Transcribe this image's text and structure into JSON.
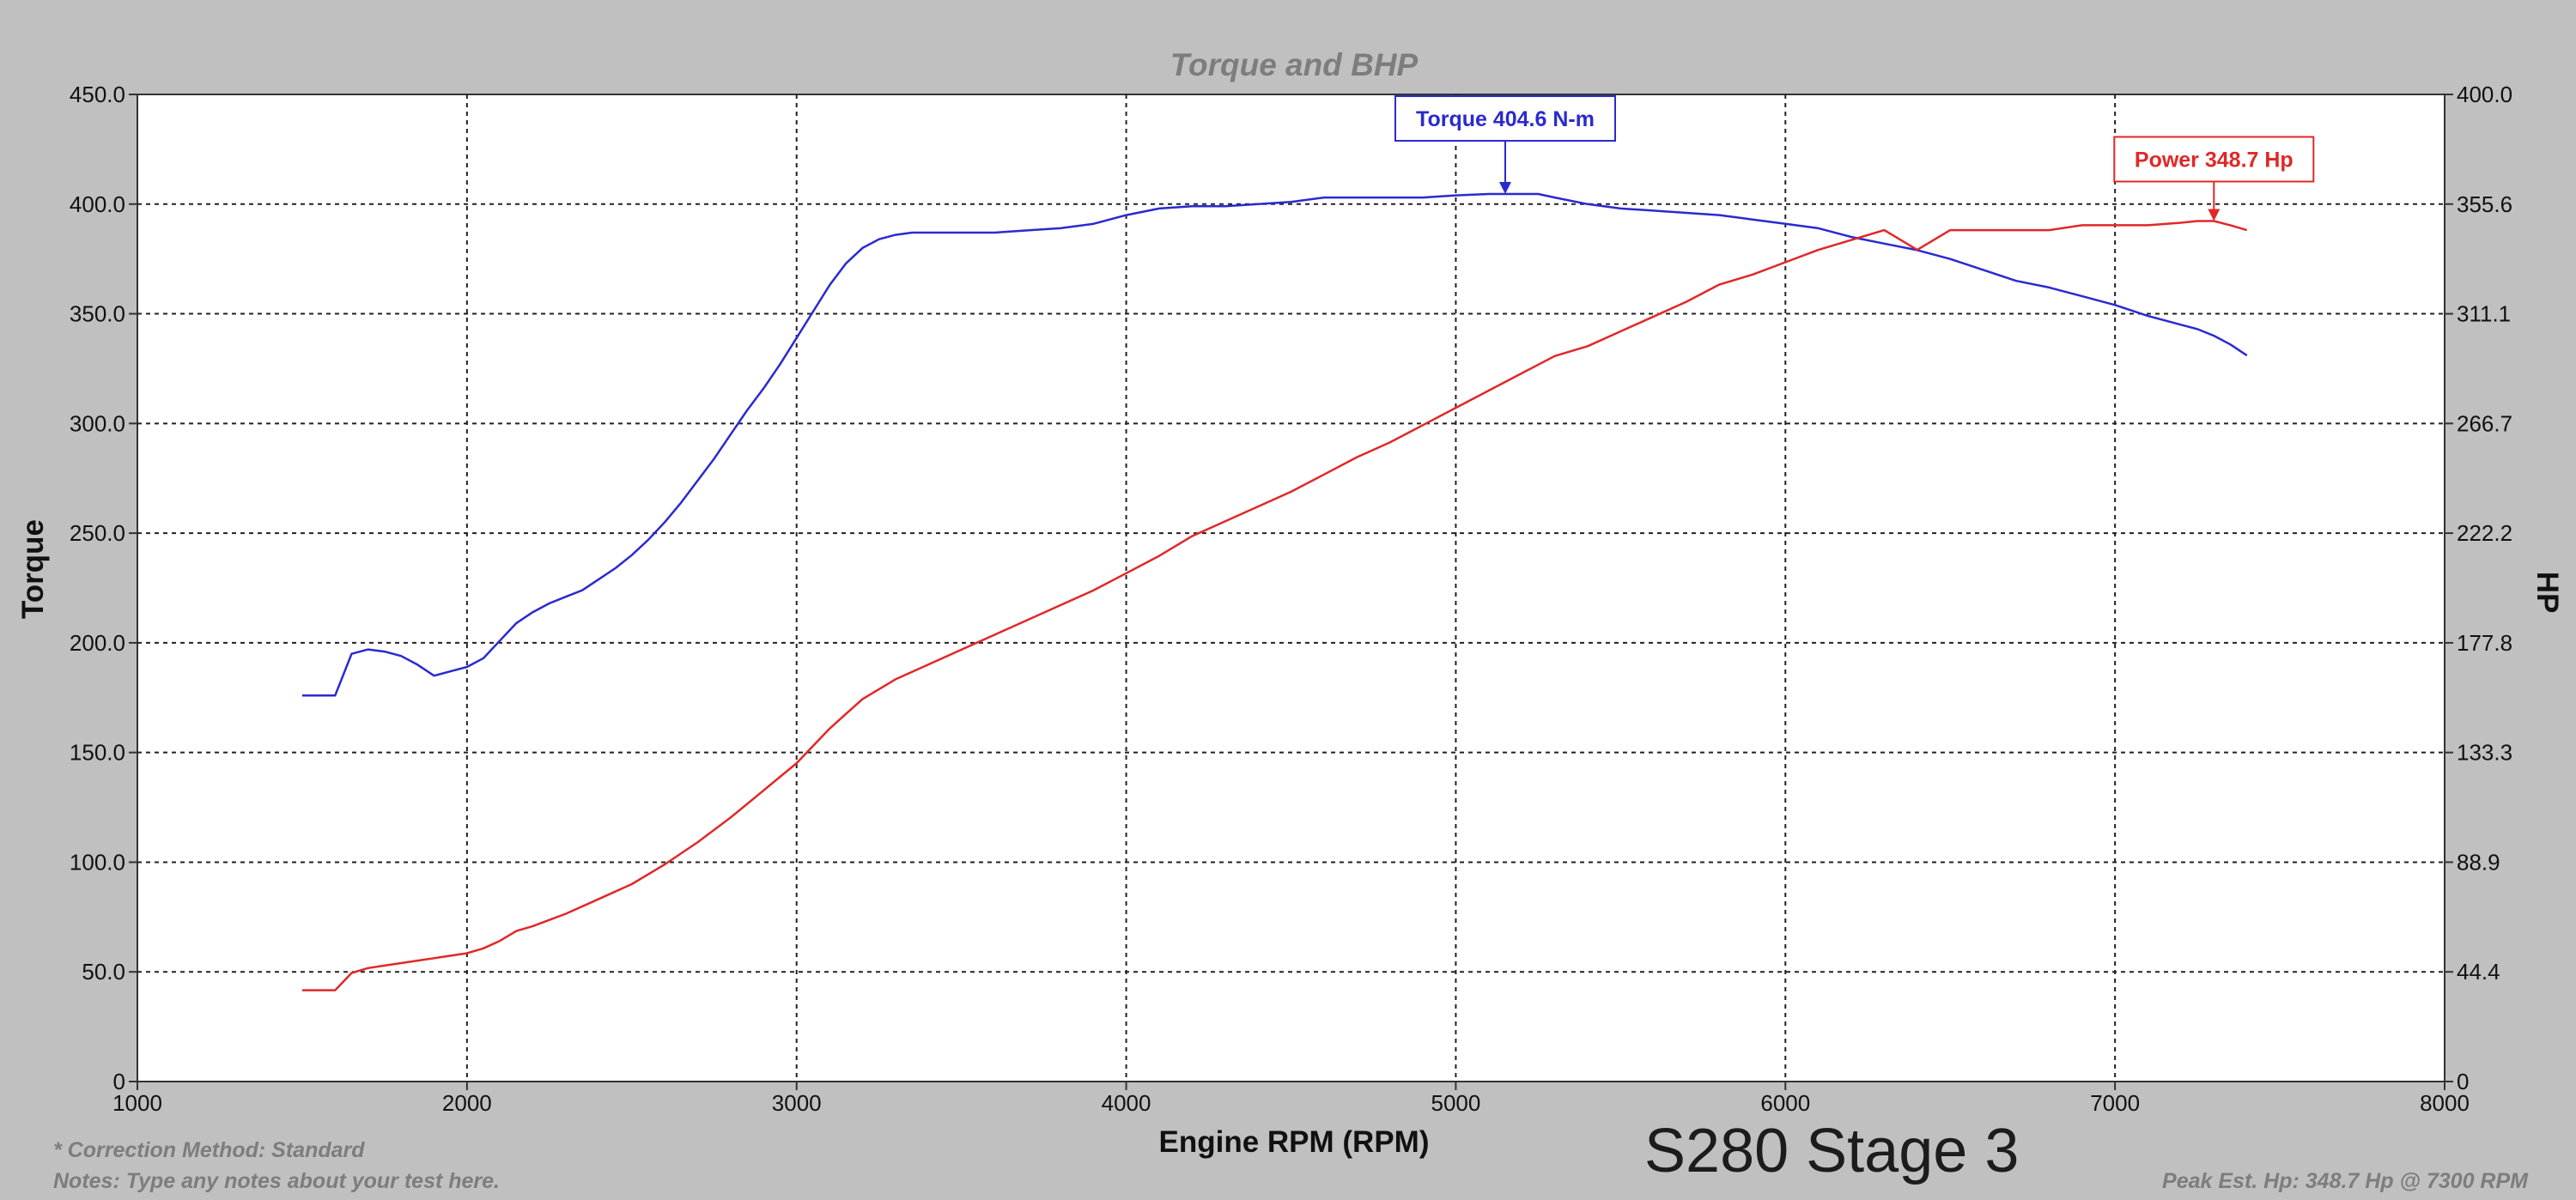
{
  "chart_data": {
    "type": "line",
    "title": "Torque and BHP",
    "xlabel": "Engine RPM (RPM)",
    "ylabel_left": "Torque",
    "ylabel_right": "HP",
    "xlim": [
      1000,
      8000
    ],
    "ylim_left": [
      0,
      450
    ],
    "ylim_right": [
      0,
      400
    ],
    "x_ticks": [
      "1000",
      "2000",
      "3000",
      "4000",
      "5000",
      "6000",
      "7000",
      "8000"
    ],
    "y_left_ticks": [
      "0",
      "50.0",
      "100.0",
      "150.0",
      "200.0",
      "250.0",
      "300.0",
      "350.0",
      "400.0",
      "450.0"
    ],
    "y_right_ticks": [
      "0",
      "44.4",
      "88.9",
      "133.3",
      "177.8",
      "222.2",
      "266.7",
      "311.1",
      "355.6",
      "400.0"
    ],
    "grid": true,
    "series": [
      {
        "name": "Torque",
        "axis": "left",
        "color": "#2a2ad0",
        "x": [
          1500,
          1600,
          1650,
          1700,
          1750,
          1800,
          1850,
          1900,
          1950,
          2000,
          2050,
          2100,
          2150,
          2200,
          2250,
          2300,
          2350,
          2400,
          2450,
          2500,
          2550,
          2600,
          2650,
          2700,
          2750,
          2800,
          2850,
          2900,
          2950,
          3000,
          3050,
          3100,
          3150,
          3200,
          3250,
          3300,
          3350,
          3400,
          3500,
          3600,
          3700,
          3800,
          3900,
          4000,
          4100,
          4200,
          4300,
          4400,
          4500,
          4600,
          4700,
          4800,
          4900,
          5000,
          5100,
          5150,
          5200,
          5250,
          5300,
          5400,
          5500,
          5600,
          5700,
          5800,
          5900,
          6000,
          6100,
          6200,
          6300,
          6400,
          6500,
          6600,
          6700,
          6800,
          6900,
          7000,
          7100,
          7200,
          7250,
          7300,
          7350,
          7400
        ],
        "values": [
          176,
          176,
          195,
          197,
          196,
          194,
          190,
          185,
          187,
          189,
          193,
          201,
          209,
          214,
          218,
          221,
          224,
          229,
          234,
          240,
          247,
          255,
          264,
          274,
          284,
          295,
          306,
          316,
          327,
          339,
          351,
          363,
          373,
          380,
          384,
          386,
          387,
          387,
          387,
          387,
          388,
          389,
          391,
          395,
          398,
          399,
          399,
          400,
          401,
          403,
          403,
          403,
          403,
          404,
          404.6,
          404.6,
          404.6,
          404.6,
          403,
          400,
          398,
          397,
          396,
          395,
          393,
          391,
          389,
          385,
          382,
          379,
          375,
          370,
          365,
          362,
          358,
          354,
          349,
          345,
          343,
          340,
          336,
          331
        ]
      },
      {
        "name": "Power",
        "axis": "right",
        "color": "#e02828",
        "x": [
          1500,
          1600,
          1650,
          1700,
          1750,
          1800,
          1850,
          1900,
          1950,
          2000,
          2050,
          2100,
          2150,
          2200,
          2300,
          2400,
          2500,
          2600,
          2700,
          2800,
          2900,
          3000,
          3050,
          3100,
          3150,
          3200,
          3250,
          3300,
          3400,
          3500,
          3600,
          3700,
          3800,
          3900,
          4000,
          4100,
          4200,
          4300,
          4400,
          4500,
          4600,
          4700,
          4800,
          4900,
          5000,
          5100,
          5200,
          5300,
          5400,
          5500,
          5600,
          5700,
          5800,
          5900,
          6000,
          6100,
          6200,
          6300,
          6400,
          6500,
          6600,
          6700,
          6800,
          6900,
          7000,
          7100,
          7200,
          7250,
          7300,
          7350,
          7400
        ],
        "values": [
          37,
          37,
          44,
          46,
          47,
          48,
          49,
          50,
          51,
          52,
          54,
          57,
          61,
          63,
          68,
          74,
          80,
          88,
          97,
          107,
          118,
          129,
          136,
          143,
          149,
          155,
          159,
          163,
          169,
          175,
          181,
          187,
          193,
          199,
          206,
          213,
          221,
          227,
          233,
          239,
          246,
          253,
          259,
          266,
          273,
          280,
          287,
          294,
          298,
          304,
          310,
          316,
          323,
          327,
          332,
          337,
          341,
          345,
          337,
          345,
          345,
          345,
          345,
          347,
          347,
          347,
          348,
          348.7,
          348.7,
          347,
          345
        ]
      }
    ],
    "annotations": [
      {
        "text": "Torque 404.6 N-m",
        "series": "Torque",
        "x": 5150,
        "y": 404.6
      },
      {
        "text": "Power 348.7 Hp",
        "series": "Power",
        "x": 7300,
        "y": 348.7
      }
    ]
  },
  "subtitle": "S280 Stage 3",
  "footer": {
    "correction": "* Correction Method: Standard",
    "notes": "Notes: Type any notes about your test here.",
    "peak": "Peak Est. Hp: 348.7 Hp @ 7300 RPM"
  }
}
